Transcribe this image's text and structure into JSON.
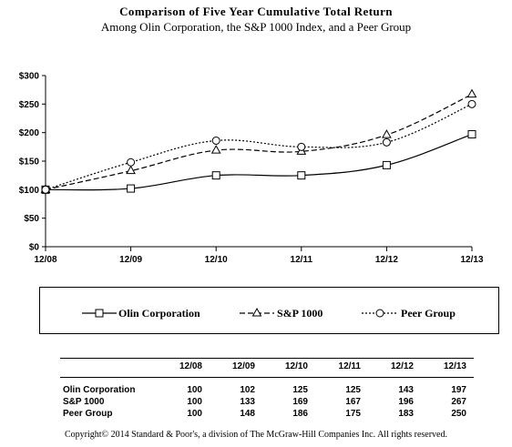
{
  "chart_data": {
    "type": "line",
    "title": "Comparison  of Five Year Cumulative  Total Return",
    "subtitle": "Among Olin Corporation, the S&P 1000  Index,  and a Peer Group",
    "categories": [
      "12/08",
      "12/09",
      "12/10",
      "12/11",
      "12/12",
      "12/13"
    ],
    "y_ticks": [
      "$0",
      "$50",
      "$100",
      "$150",
      "$200",
      "$250",
      "$300"
    ],
    "ylim": [
      0,
      300
    ],
    "grid": false,
    "legend_position": "bottom",
    "series": [
      {
        "name": "Olin Corporation",
        "values": [
          100,
          102,
          125,
          125,
          143,
          197
        ],
        "marker": "square",
        "dash": "solid"
      },
      {
        "name": "S&P 1000",
        "values": [
          100,
          133,
          169,
          167,
          196,
          267
        ],
        "marker": "triangle",
        "dash": "dashed"
      },
      {
        "name": "Peer Group",
        "values": [
          100,
          148,
          186,
          175,
          183,
          250
        ],
        "marker": "circle",
        "dash": "dotted"
      }
    ]
  },
  "table": {
    "headers": [
      "12/08",
      "12/09",
      "12/10",
      "12/11",
      "12/12",
      "12/13"
    ],
    "rows": [
      {
        "label": "Olin Corporation",
        "values": [
          "100",
          "102",
          "125",
          "125",
          "143",
          "197"
        ]
      },
      {
        "label": "S&P 1000",
        "values": [
          "100",
          "133",
          "169",
          "167",
          "196",
          "267"
        ]
      },
      {
        "label": "Peer Group",
        "values": [
          "100",
          "148",
          "186",
          "175",
          "183",
          "250"
        ]
      }
    ]
  },
  "copyright": "Copyright© 2014 Standard & Poor's, a division of The McGraw-Hill Companies Inc. All rights reserved."
}
